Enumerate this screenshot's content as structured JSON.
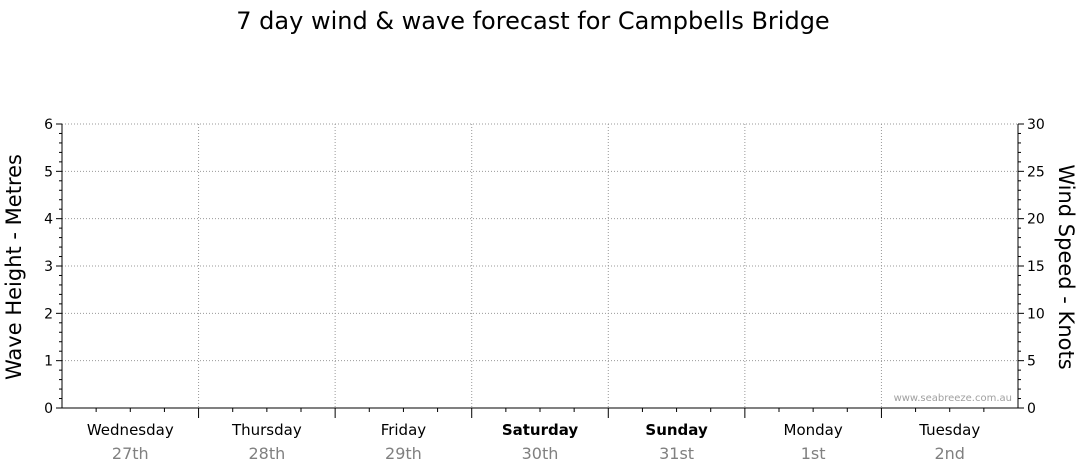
{
  "chart_data": {
    "type": "line",
    "title": "7 day wind & wave forecast for Campbells Bridge",
    "ylabel_left": "Wave Height - Metres",
    "ylabel_right": "Wind Speed - Knots",
    "ylim_left": [
      0,
      6
    ],
    "ylim_right": [
      0,
      30
    ],
    "yticks_left": [
      "0",
      "1",
      "2",
      "3",
      "4",
      "5",
      "6"
    ],
    "yticks_right": [
      "0",
      "5",
      "10",
      "15",
      "20",
      "25",
      "30"
    ],
    "grid": true,
    "days": [
      {
        "name": "Wednesday",
        "date": "27th",
        "bold": false
      },
      {
        "name": "Thursday",
        "date": "28th",
        "bold": false
      },
      {
        "name": "Friday",
        "date": "29th",
        "bold": false
      },
      {
        "name": "Saturday",
        "date": "30th",
        "bold": true
      },
      {
        "name": "Sunday",
        "date": "31st",
        "bold": true
      },
      {
        "name": "Monday",
        "date": "1st",
        "bold": false
      },
      {
        "name": "Tuesday",
        "date": "2nd",
        "bold": false
      }
    ],
    "series": [],
    "credit": "www.seabreeze.com.au"
  }
}
